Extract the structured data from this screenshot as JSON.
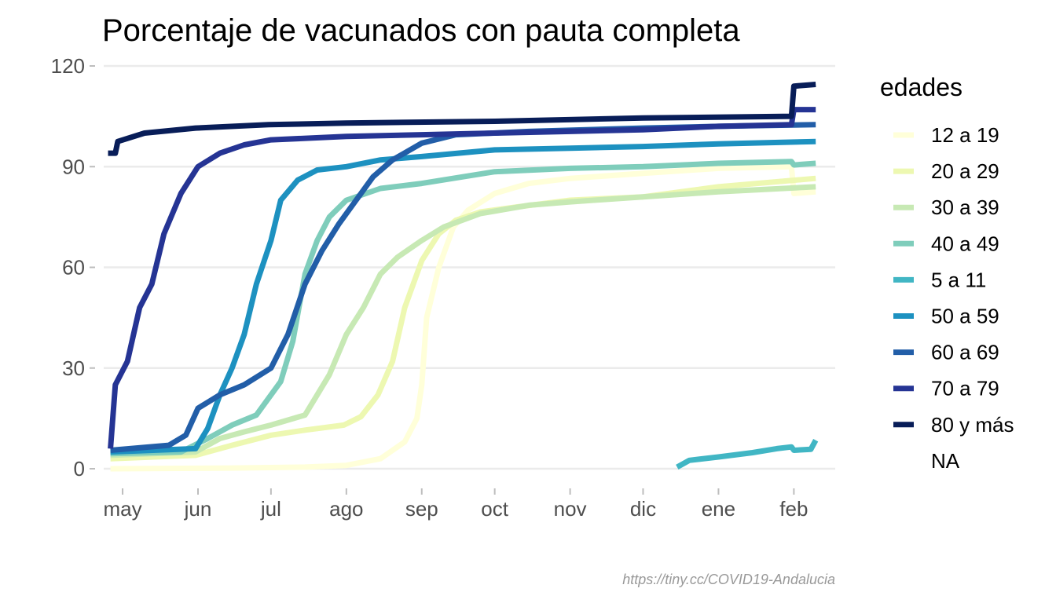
{
  "chart_data": {
    "type": "line",
    "title": "Porcentaje de vacunados con pauta completa",
    "xlabel": "",
    "ylabel": "",
    "ylim": [
      -5,
      120
    ],
    "xlim": [
      "2021-04-20",
      "2022-02-18"
    ],
    "grid": true,
    "legend_position": "right",
    "legend_title": "edades",
    "legend_extra": "NA",
    "caption": "https://tiny.cc/COVID19-Andalucia",
    "y_ticks": [
      0,
      30,
      60,
      90,
      120
    ],
    "x_ticks": [
      {
        "date": "2021-05-01",
        "label": "may"
      },
      {
        "date": "2021-06-01",
        "label": "jun"
      },
      {
        "date": "2021-07-01",
        "label": "jul"
      },
      {
        "date": "2021-08-01",
        "label": "ago"
      },
      {
        "date": "2021-09-01",
        "label": "sep"
      },
      {
        "date": "2021-10-01",
        "label": "oct"
      },
      {
        "date": "2021-11-01",
        "label": "nov"
      },
      {
        "date": "2021-12-01",
        "label": "dic"
      },
      {
        "date": "2022-01-01",
        "label": "ene"
      },
      {
        "date": "2022-02-01",
        "label": "feb"
      }
    ],
    "series": [
      {
        "name": "12 a 19",
        "color": "#ffffd9",
        "points": [
          [
            "2021-04-26",
            0
          ],
          [
            "2021-06-15",
            0.2
          ],
          [
            "2021-07-15",
            0.5
          ],
          [
            "2021-08-01",
            1
          ],
          [
            "2021-08-15",
            3
          ],
          [
            "2021-08-25",
            8
          ],
          [
            "2021-08-30",
            15
          ],
          [
            "2021-09-01",
            25
          ],
          [
            "2021-09-03",
            45
          ],
          [
            "2021-09-08",
            60
          ],
          [
            "2021-09-14",
            72
          ],
          [
            "2021-09-20",
            77
          ],
          [
            "2021-10-01",
            82
          ],
          [
            "2021-10-15",
            85
          ],
          [
            "2021-11-01",
            86.5
          ],
          [
            "2021-12-01",
            88
          ],
          [
            "2022-01-01",
            89.5
          ],
          [
            "2022-01-31",
            90
          ],
          [
            "2022-02-01",
            82
          ],
          [
            "2022-02-10",
            82.5
          ]
        ]
      },
      {
        "name": "20 a 29",
        "color": "#edf8b1",
        "points": [
          [
            "2021-04-26",
            3
          ],
          [
            "2021-05-31",
            4
          ],
          [
            "2021-06-15",
            7
          ],
          [
            "2021-07-01",
            10
          ],
          [
            "2021-07-15",
            11.5
          ],
          [
            "2021-07-31",
            13
          ],
          [
            "2021-08-07",
            15.5
          ],
          [
            "2021-08-14",
            22
          ],
          [
            "2021-08-20",
            32
          ],
          [
            "2021-08-25",
            48
          ],
          [
            "2021-09-01",
            62
          ],
          [
            "2021-09-08",
            70
          ],
          [
            "2021-09-15",
            74
          ],
          [
            "2021-09-25",
            76.5
          ],
          [
            "2021-10-10",
            78
          ],
          [
            "2021-11-01",
            80
          ],
          [
            "2021-12-01",
            81
          ],
          [
            "2022-01-01",
            84
          ],
          [
            "2022-02-10",
            86.5
          ]
        ]
      },
      {
        "name": "30 a 39",
        "color": "#c7e9b4",
        "points": [
          [
            "2021-04-26",
            4
          ],
          [
            "2021-05-31",
            5
          ],
          [
            "2021-06-10",
            9
          ],
          [
            "2021-06-20",
            11
          ],
          [
            "2021-07-01",
            13
          ],
          [
            "2021-07-15",
            16
          ],
          [
            "2021-07-25",
            28
          ],
          [
            "2021-08-01",
            40
          ],
          [
            "2021-08-08",
            48
          ],
          [
            "2021-08-15",
            58
          ],
          [
            "2021-08-22",
            63
          ],
          [
            "2021-09-01",
            68
          ],
          [
            "2021-09-10",
            72
          ],
          [
            "2021-09-25",
            76
          ],
          [
            "2021-10-15",
            78.5
          ],
          [
            "2021-11-01",
            79.5
          ],
          [
            "2021-12-01",
            81
          ],
          [
            "2022-01-01",
            82.5
          ],
          [
            "2022-02-10",
            84
          ]
        ]
      },
      {
        "name": "40 a 49",
        "color": "#7fcdbb",
        "points": [
          [
            "2021-04-26",
            4.5
          ],
          [
            "2021-05-25",
            5
          ],
          [
            "2021-06-05",
            9
          ],
          [
            "2021-06-15",
            13
          ],
          [
            "2021-06-25",
            16
          ],
          [
            "2021-07-05",
            26
          ],
          [
            "2021-07-10",
            38
          ],
          [
            "2021-07-15",
            58
          ],
          [
            "2021-07-20",
            68
          ],
          [
            "2021-07-25",
            75
          ],
          [
            "2021-08-01",
            80
          ],
          [
            "2021-08-15",
            83.5
          ],
          [
            "2021-09-01",
            85
          ],
          [
            "2021-10-01",
            88.5
          ],
          [
            "2021-11-01",
            89.5
          ],
          [
            "2021-12-01",
            90
          ],
          [
            "2022-01-01",
            91
          ],
          [
            "2022-01-31",
            91.5
          ],
          [
            "2022-02-01",
            90.5
          ],
          [
            "2022-02-10",
            91
          ]
        ]
      },
      {
        "name": "5 a 11",
        "color": "#41b6c4",
        "points": [
          [
            "2021-12-15",
            0.5
          ],
          [
            "2021-12-20",
            2.5
          ],
          [
            "2022-01-01",
            3.5
          ],
          [
            "2022-01-15",
            4.8
          ],
          [
            "2022-01-25",
            6
          ],
          [
            "2022-01-31",
            6.5
          ],
          [
            "2022-02-01",
            5.5
          ],
          [
            "2022-02-08",
            5.8
          ],
          [
            "2022-02-10",
            8.5
          ]
        ]
      },
      {
        "name": "50 a 59",
        "color": "#1d91c0",
        "points": [
          [
            "2021-04-26",
            5
          ],
          [
            "2021-05-31",
            6
          ],
          [
            "2021-06-05",
            12
          ],
          [
            "2021-06-10",
            22
          ],
          [
            "2021-06-15",
            30
          ],
          [
            "2021-06-20",
            40
          ],
          [
            "2021-06-25",
            55
          ],
          [
            "2021-07-01",
            68
          ],
          [
            "2021-07-05",
            80
          ],
          [
            "2021-07-12",
            86
          ],
          [
            "2021-07-20",
            89
          ],
          [
            "2021-08-01",
            90
          ],
          [
            "2021-08-15",
            92
          ],
          [
            "2021-09-01",
            93
          ],
          [
            "2021-10-01",
            95
          ],
          [
            "2021-11-01",
            95.5
          ],
          [
            "2021-12-01",
            96
          ],
          [
            "2022-01-01",
            96.8
          ],
          [
            "2022-02-10",
            97.5
          ]
        ]
      },
      {
        "name": "60 a 69",
        "color": "#225ea8",
        "points": [
          [
            "2021-04-26",
            5.5
          ],
          [
            "2021-05-20",
            7
          ],
          [
            "2021-05-27",
            10
          ],
          [
            "2021-06-01",
            18
          ],
          [
            "2021-06-10",
            22
          ],
          [
            "2021-06-20",
            25
          ],
          [
            "2021-07-01",
            30
          ],
          [
            "2021-07-08",
            40
          ],
          [
            "2021-07-15",
            55
          ],
          [
            "2021-07-22",
            65
          ],
          [
            "2021-07-29",
            73
          ],
          [
            "2021-08-05",
            80
          ],
          [
            "2021-08-12",
            87
          ],
          [
            "2021-08-20",
            92
          ],
          [
            "2021-09-01",
            97
          ],
          [
            "2021-09-15",
            99.5
          ],
          [
            "2021-10-15",
            100.5
          ],
          [
            "2021-12-01",
            101.5
          ],
          [
            "2022-01-01",
            102
          ],
          [
            "2022-02-10",
            102.5
          ]
        ]
      },
      {
        "name": "70 a 79",
        "color": "#253494",
        "points": [
          [
            "2021-04-26",
            6
          ],
          [
            "2021-04-28",
            25
          ],
          [
            "2021-05-03",
            32
          ],
          [
            "2021-05-08",
            48
          ],
          [
            "2021-05-13",
            55
          ],
          [
            "2021-05-18",
            70
          ],
          [
            "2021-05-25",
            82
          ],
          [
            "2021-06-01",
            90
          ],
          [
            "2021-06-10",
            94
          ],
          [
            "2021-06-20",
            96.5
          ],
          [
            "2021-07-01",
            98
          ],
          [
            "2021-08-01",
            99
          ],
          [
            "2021-09-01",
            99.5
          ],
          [
            "2021-10-01",
            100
          ],
          [
            "2021-11-01",
            100.5
          ],
          [
            "2021-12-01",
            101
          ],
          [
            "2022-01-01",
            102
          ],
          [
            "2022-01-31",
            102.5
          ],
          [
            "2022-02-01",
            107
          ],
          [
            "2022-02-10",
            107
          ]
        ]
      },
      {
        "name": "80 y más",
        "color": "#081d58",
        "points": [
          [
            "2021-04-25",
            94
          ],
          [
            "2021-04-28",
            94
          ],
          [
            "2021-04-29",
            97.5
          ],
          [
            "2021-05-10",
            100
          ],
          [
            "2021-05-31",
            101.5
          ],
          [
            "2021-06-30",
            102.5
          ],
          [
            "2021-08-01",
            103
          ],
          [
            "2021-10-01",
            103.5
          ],
          [
            "2021-12-01",
            104.5
          ],
          [
            "2022-01-31",
            105
          ],
          [
            "2022-02-01",
            114
          ],
          [
            "2022-02-10",
            114.5
          ]
        ]
      }
    ]
  }
}
